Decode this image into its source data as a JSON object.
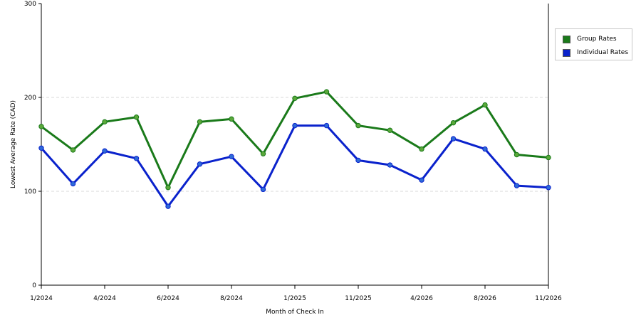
{
  "chart_data": {
    "type": "line",
    "x": [
      "1/2024",
      "",
      "4/2024",
      "",
      "6/2024",
      "",
      "8/2024",
      "",
      "1/2025",
      "",
      "11/2025",
      "",
      "4/2026",
      "",
      "8/2026",
      "",
      "11/2026"
    ],
    "x_tick_labels": [
      "1/2024",
      "4/2024",
      "6/2024",
      "8/2024",
      "1/2025",
      "11/2025",
      "4/2026",
      "8/2026",
      "11/2026"
    ],
    "xlabel": "Month of Check In",
    "ylabel": "Lowest Average Rate (CAD)",
    "ylim": [
      0,
      300
    ],
    "y_ticks": [
      0,
      100,
      200,
      300
    ],
    "grid": "horizontal dashed at 100 and 200",
    "legend_position": "right",
    "series": [
      {
        "name": "Group Rates",
        "color": "#1a7a1a",
        "marker_color": "#5aa83a",
        "values": [
          169,
          144,
          174,
          179,
          104,
          174,
          177,
          140,
          199,
          206,
          170,
          165,
          145,
          173,
          192,
          139,
          136
        ]
      },
      {
        "name": "Individual Rates",
        "color": "#0a22cc",
        "marker_color": "#2e6ad8",
        "values": [
          146,
          108,
          143,
          135,
          84,
          129,
          137,
          102,
          170,
          170,
          133,
          128,
          112,
          156,
          145,
          106,
          104
        ]
      }
    ]
  }
}
